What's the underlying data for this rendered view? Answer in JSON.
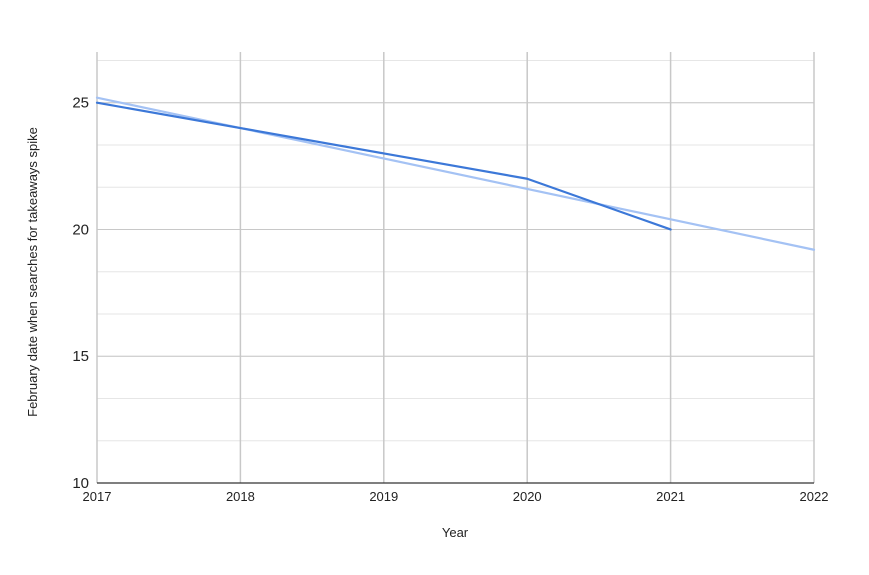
{
  "chart_data": {
    "type": "line",
    "title": "",
    "xlabel": "Year",
    "ylabel": "February date when searches for takeaways spike",
    "x_ticks": [
      "2017",
      "2018",
      "2019",
      "2020",
      "2021",
      "2022"
    ],
    "y_ticks": [
      "10",
      "15",
      "20",
      "25"
    ],
    "xlim": [
      2017,
      2022
    ],
    "ylim": [
      10,
      27
    ],
    "grid": true,
    "legend": "none",
    "series": [
      {
        "x": [
          2017,
          2018,
          2019,
          2020,
          2021
        ],
        "values": [
          25,
          24,
          23,
          22,
          20
        ],
        "color": "#3c78d8"
      },
      {
        "trendline": true,
        "x": [
          2017,
          2022
        ],
        "values": [
          25.2,
          19.2
        ],
        "color": "#a4c2f4"
      }
    ]
  }
}
